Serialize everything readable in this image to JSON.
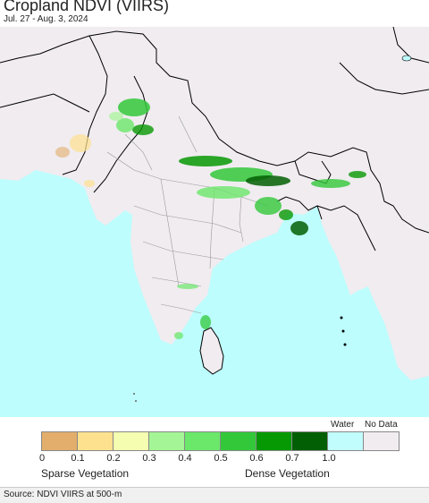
{
  "title": "Cropland NDVI (VIIRS)",
  "date_range": "Jul. 27 - Aug. 3, 2024",
  "colors": {
    "ocean": "#bdfdfd",
    "land": "#f0ecf0",
    "border": "#000000",
    "internal_border": "#999999"
  },
  "legend": {
    "swatches": [
      {
        "color": "#e3ae6b"
      },
      {
        "color": "#fde18e"
      },
      {
        "color": "#f4fdb0"
      },
      {
        "color": "#a4f595"
      },
      {
        "color": "#6be76a"
      },
      {
        "color": "#33c839"
      },
      {
        "color": "#079904"
      },
      {
        "color": "#035f03"
      },
      {
        "color": "#c2fdfd"
      },
      {
        "color": "#f0ecf0"
      }
    ],
    "ticks": [
      "0",
      "0.1",
      "0.2",
      "0.3",
      "0.4",
      "0.5",
      "0.6",
      "0.7",
      "1.0"
    ],
    "water_label": "Water",
    "nodata_label": "No Data",
    "sparse_label": "Sparse Vegetation",
    "dense_label": "Dense Vegetation"
  },
  "source": "Source: NDVI VIIRS at 500-m"
}
